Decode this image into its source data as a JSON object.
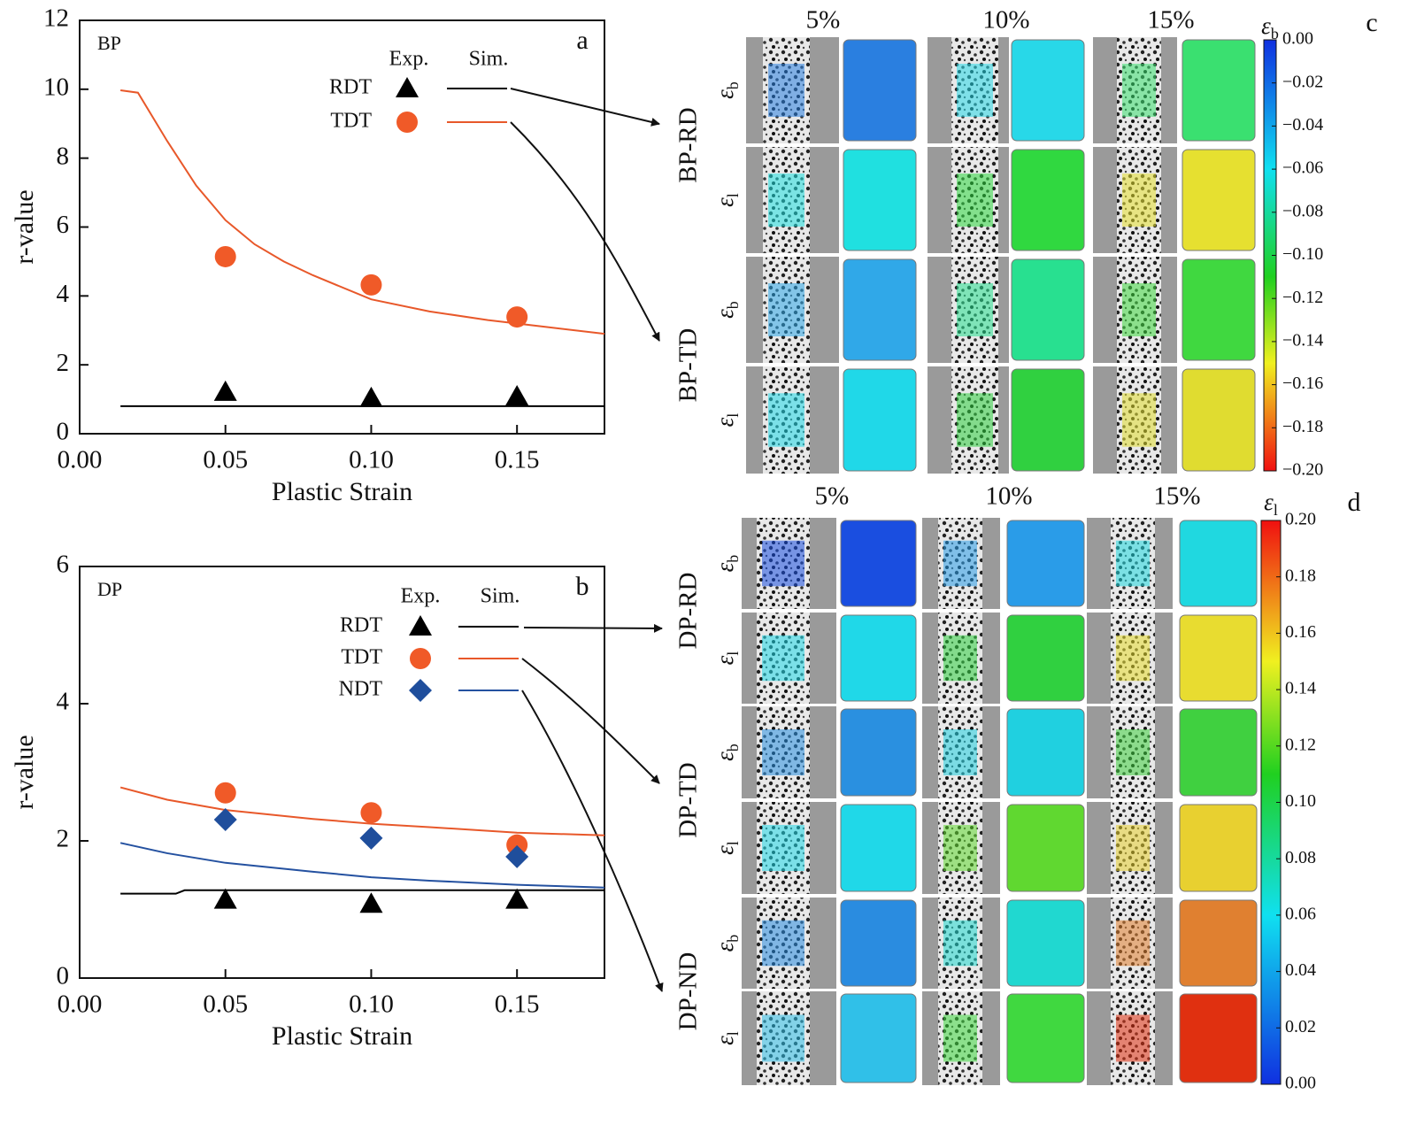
{
  "chart_data": [
    {
      "type": "line",
      "material": "BP",
      "panel_label": "a",
      "x_label": "Plastic Strain",
      "y_label": "r-value",
      "xlim": [
        0,
        0.18
      ],
      "ylim": [
        0,
        12
      ],
      "xticks": [
        {
          "value": 0,
          "label": "0.00"
        },
        {
          "value": 0.05,
          "label": "0.05"
        },
        {
          "value": 0.1,
          "label": "0.10"
        },
        {
          "value": 0.15,
          "label": "0.15"
        }
      ],
      "yticks": [
        0,
        2,
        4,
        6,
        8,
        10,
        12
      ],
      "legend_headers": [
        "Exp.",
        "Sim."
      ],
      "series": [
        {
          "name": "RDT",
          "marker": "triangle",
          "marker_color": "#000000",
          "color": "#000000",
          "exp": {
            "x": [
              0.05,
              0.1,
              0.15
            ],
            "values": [
              1.21,
              1.03,
              1.08
            ]
          },
          "sim": {
            "x": [
              0.014,
              0.18
            ],
            "values": [
              0.8,
              0.8
            ]
          }
        },
        {
          "name": "TDT",
          "marker": "circle",
          "marker_color": "#f05a28",
          "color": "#e8582a",
          "exp": {
            "x": [
              0.05,
              0.1,
              0.15
            ],
            "values": [
              5.14,
              4.32,
              3.39
            ]
          },
          "sim": {
            "x": [
              0.014,
              0.02,
              0.03,
              0.04,
              0.05,
              0.06,
              0.07,
              0.08,
              0.1,
              0.12,
              0.14,
              0.16,
              0.18
            ],
            "values": [
              9.97,
              9.9,
              8.5,
              7.2,
              6.2,
              5.5,
              5.0,
              4.6,
              3.9,
              3.55,
              3.3,
              3.1,
              2.9
            ]
          }
        }
      ]
    },
    {
      "type": "line",
      "material": "DP",
      "panel_label": "b",
      "x_label": "Plastic Strain",
      "y_label": "r-value",
      "xlim": [
        0,
        0.18
      ],
      "ylim": [
        0,
        6
      ],
      "xticks": [
        {
          "value": 0,
          "label": "0.00"
        },
        {
          "value": 0.05,
          "label": "0.05"
        },
        {
          "value": 0.1,
          "label": "0.10"
        },
        {
          "value": 0.15,
          "label": "0.15"
        }
      ],
      "yticks": [
        0,
        2,
        4,
        6
      ],
      "legend_headers": [
        "Exp.",
        "Sim."
      ],
      "series": [
        {
          "name": "RDT",
          "marker": "triangle",
          "marker_color": "#000000",
          "color": "#000000",
          "exp": {
            "x": [
              0.05,
              0.1,
              0.15
            ],
            "values": [
              1.14,
              1.08,
              1.14
            ]
          },
          "sim": {
            "x": [
              0.014,
              0.033,
              0.036,
              0.18
            ],
            "values": [
              1.23,
              1.23,
              1.28,
              1.28
            ]
          }
        },
        {
          "name": "TDT",
          "marker": "circle",
          "marker_color": "#f05a28",
          "color": "#e8582a",
          "exp": {
            "x": [
              0.05,
              0.1,
              0.15
            ],
            "values": [
              2.7,
              2.41,
              1.94
            ]
          },
          "sim": {
            "x": [
              0.014,
              0.03,
              0.05,
              0.08,
              0.1,
              0.12,
              0.15,
              0.18
            ],
            "values": [
              2.78,
              2.6,
              2.45,
              2.32,
              2.25,
              2.2,
              2.12,
              2.08
            ]
          }
        },
        {
          "name": "NDT",
          "marker": "diamond",
          "marker_color": "#1f4e9c",
          "color": "#2451a0",
          "exp": {
            "x": [
              0.05,
              0.1,
              0.15
            ],
            "values": [
              2.31,
              2.04,
              1.77
            ]
          },
          "sim": {
            "x": [
              0.014,
              0.03,
              0.05,
              0.08,
              0.1,
              0.12,
              0.15,
              0.18
            ],
            "values": [
              1.97,
              1.82,
              1.68,
              1.55,
              1.47,
              1.42,
              1.36,
              1.32
            ]
          }
        }
      ]
    }
  ],
  "strain_maps": [
    {
      "panel_label": "c",
      "columns": [
        "5%",
        "10%",
        "15%"
      ],
      "groups": [
        {
          "name": "BP-RD",
          "rows": [
            {
              "symbol": "ε",
              "sub": "b"
            },
            {
              "symbol": "ε",
              "sub": "l"
            }
          ]
        },
        {
          "name": "BP-TD",
          "rows": [
            {
              "symbol": "ε",
              "sub": "b"
            },
            {
              "symbol": "ε",
              "sub": "l"
            }
          ]
        }
      ],
      "colorbar": {
        "symbol": "ε",
        "sub": "b",
        "lim": [
          -0.2,
          0
        ],
        "ticks": [
          {
            "value": 0,
            "label": "0.00"
          },
          {
            "value": -0.02,
            "label": "−0.02"
          },
          {
            "value": -0.04,
            "label": "−0.04"
          },
          {
            "value": -0.06,
            "label": "−0.06"
          },
          {
            "value": -0.08,
            "label": "−0.08"
          },
          {
            "value": -0.1,
            "label": "−0.10"
          },
          {
            "value": -0.12,
            "label": "−0.12"
          },
          {
            "value": -0.14,
            "label": "−0.14"
          },
          {
            "value": -0.16,
            "label": "−0.16"
          },
          {
            "value": -0.18,
            "label": "−0.18"
          },
          {
            "value": -0.2,
            "label": "−0.20"
          }
        ]
      }
    },
    {
      "panel_label": "d",
      "columns": [
        "5%",
        "10%",
        "15%"
      ],
      "groups": [
        {
          "name": "DP-RD",
          "rows": [
            {
              "symbol": "ε",
              "sub": "b"
            },
            {
              "symbol": "ε",
              "sub": "l"
            }
          ]
        },
        {
          "name": "DP-TD",
          "rows": [
            {
              "symbol": "ε",
              "sub": "b"
            },
            {
              "symbol": "ε",
              "sub": "l"
            }
          ]
        },
        {
          "name": "DP-ND",
          "rows": [
            {
              "symbol": "ε",
              "sub": "b"
            },
            {
              "symbol": "ε",
              "sub": "l"
            }
          ]
        }
      ],
      "colorbar": {
        "symbol": "ε",
        "sub": "l",
        "lim": [
          0,
          0.2
        ],
        "ticks": [
          {
            "value": 0.2,
            "label": "0.20"
          },
          0.18,
          0.16,
          0.14,
          0.12,
          {
            "value": 0.1,
            "label": "0.10"
          },
          0.08,
          0.06,
          0.04,
          0.02,
          {
            "value": 0,
            "label": "0.00"
          }
        ]
      }
    }
  ]
}
